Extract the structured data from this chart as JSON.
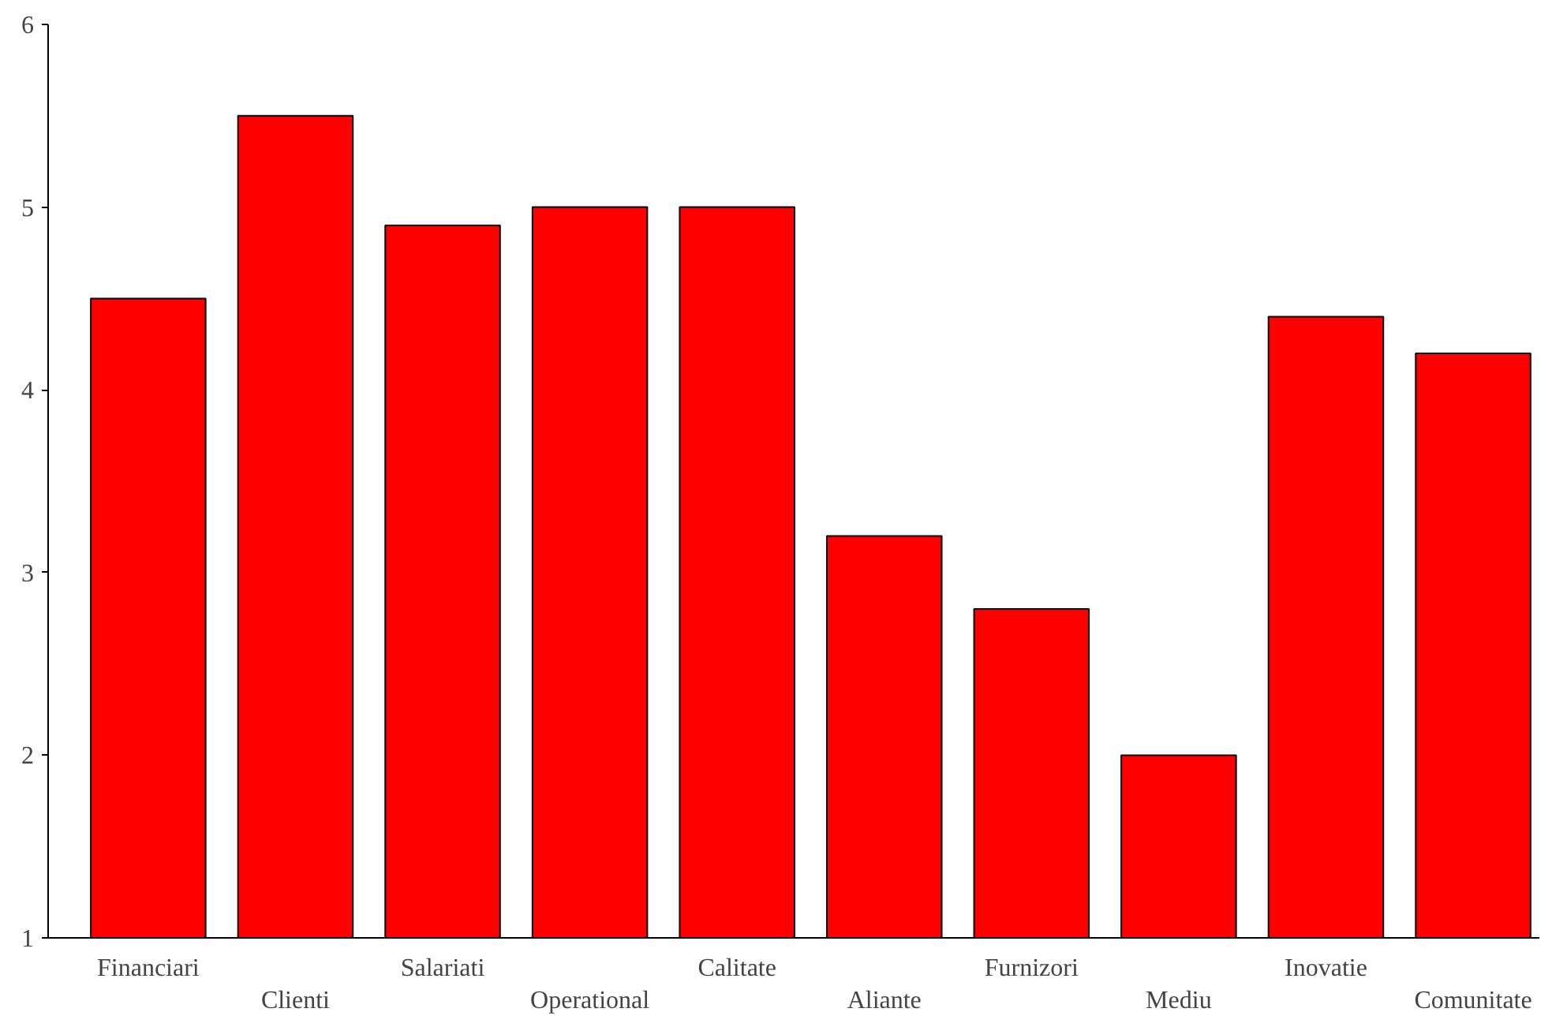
{
  "chart_data": {
    "type": "bar",
    "categories": [
      "Financiari",
      "Clienti",
      "Salariati",
      "Operational",
      "Calitate",
      "Aliante",
      "Furnizori",
      "Mediu",
      "Inovatie",
      "Comunitate"
    ],
    "values": [
      4.5,
      5.5,
      4.9,
      5.0,
      5.0,
      3.2,
      2.8,
      2.0,
      4.4,
      4.2
    ],
    "color": "#ff0000",
    "ylim": [
      1,
      6
    ],
    "yticks": [
      1,
      2,
      3,
      4,
      5,
      6
    ],
    "grid": false
  }
}
